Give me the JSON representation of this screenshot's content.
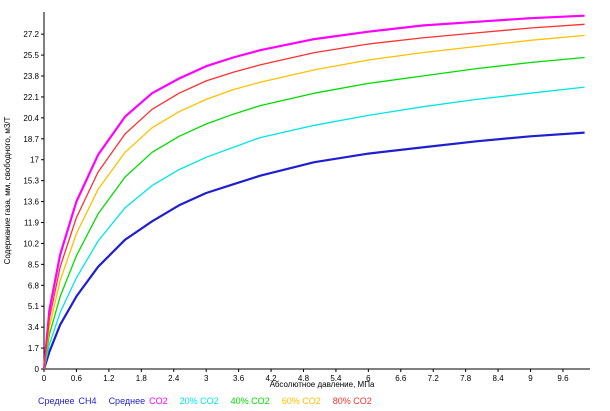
{
  "chart_data": {
    "type": "line",
    "xlabel": "Абсолютное давление, МПа",
    "ylabel": "Содержание газа, мм, свободного, м3/Т",
    "xlim": [
      0,
      10.1
    ],
    "ylim": [
      0,
      29.0
    ],
    "x_ticks": [
      "0",
      "0.6",
      "1.2",
      "1.8",
      "2.4",
      "3",
      "3.6",
      "4.2",
      "4.8",
      "5.4",
      "6",
      "6.6",
      "7.2",
      "7.8",
      "8.4",
      "9",
      "9.6"
    ],
    "y_ticks": [
      "0",
      "1.7",
      "3.4",
      "5.1",
      "6.8",
      "8.5",
      "10.2",
      "11.9",
      "13.6",
      "15.3",
      "17",
      "18.7",
      "20.4",
      "22.1",
      "23.8",
      "25.5",
      "27.2"
    ],
    "grid": false,
    "series": [
      {
        "name": "CH4",
        "color": "#1f1fd0",
        "x": [
          0,
          0.1,
          0.3,
          0.6,
          1.0,
          1.5,
          2.0,
          2.5,
          3.0,
          3.5,
          4.0,
          5.0,
          6.0,
          7.0,
          8.0,
          9.0,
          10.0
        ],
        "y": [
          0,
          1.4,
          3.6,
          5.9,
          8.3,
          10.5,
          12.0,
          13.3,
          14.3,
          15.0,
          15.7,
          16.8,
          17.5,
          18.0,
          18.5,
          18.9,
          19.2
        ]
      },
      {
        "name": "CO2",
        "color": "#ff00ff",
        "x": [
          0,
          0.1,
          0.3,
          0.6,
          1.0,
          1.5,
          2.0,
          2.5,
          3.0,
          3.5,
          4.0,
          5.0,
          6.0,
          7.0,
          8.0,
          9.0,
          10.0
        ],
        "y": [
          0,
          4.8,
          9.3,
          13.6,
          17.4,
          20.5,
          22.4,
          23.6,
          24.6,
          25.3,
          25.9,
          26.8,
          27.4,
          27.9,
          28.2,
          28.5,
          28.7
        ]
      },
      {
        "name": "20% CO2",
        "color": "#00e5e5",
        "x": [
          0,
          0.1,
          0.3,
          0.6,
          1.0,
          1.5,
          2.0,
          2.5,
          3.0,
          3.5,
          4.0,
          5.0,
          6.0,
          7.0,
          8.0,
          9.0,
          10.0
        ],
        "y": [
          0,
          2.0,
          4.6,
          7.4,
          10.4,
          13.1,
          14.9,
          16.2,
          17.2,
          18.0,
          18.8,
          19.8,
          20.6,
          21.3,
          21.9,
          22.4,
          22.9
        ]
      },
      {
        "name": "40% CO2",
        "color": "#00dd00",
        "x": [
          0,
          0.1,
          0.3,
          0.6,
          1.0,
          1.5,
          2.0,
          2.5,
          3.0,
          3.5,
          4.0,
          5.0,
          6.0,
          7.0,
          8.0,
          9.0,
          10.0
        ],
        "y": [
          0,
          2.8,
          5.9,
          9.2,
          12.6,
          15.6,
          17.6,
          18.9,
          19.9,
          20.7,
          21.4,
          22.4,
          23.2,
          23.8,
          24.4,
          24.9,
          25.3
        ]
      },
      {
        "name": "60% CO2",
        "color": "#ffc000",
        "x": [
          0,
          0.1,
          0.3,
          0.6,
          1.0,
          1.5,
          2.0,
          2.5,
          3.0,
          3.5,
          4.0,
          5.0,
          6.0,
          7.0,
          8.0,
          9.0,
          10.0
        ],
        "y": [
          0,
          3.4,
          7.2,
          11.0,
          14.6,
          17.6,
          19.6,
          20.9,
          21.9,
          22.7,
          23.3,
          24.3,
          25.1,
          25.7,
          26.2,
          26.7,
          27.1
        ]
      },
      {
        "name": "80% CO2",
        "color": "#ff3030",
        "x": [
          0,
          0.1,
          0.3,
          0.6,
          1.0,
          1.5,
          2.0,
          2.5,
          3.0,
          3.5,
          4.0,
          5.0,
          6.0,
          7.0,
          8.0,
          9.0,
          10.0
        ],
        "y": [
          0,
          4.1,
          8.3,
          12.3,
          16.0,
          19.1,
          21.1,
          22.4,
          23.4,
          24.1,
          24.7,
          25.7,
          26.4,
          26.9,
          27.3,
          27.7,
          28.0
        ]
      }
    ],
    "legend": [
      {
        "prefix": "Среднее",
        "label": "CH4",
        "color": "#1f1fd0"
      },
      {
        "prefix": "Среднее",
        "label": "CO2",
        "color": "#ff00ff"
      },
      {
        "prefix": "",
        "label": "20% CO2",
        "color": "#00e5e5"
      },
      {
        "prefix": "",
        "label": "40% CO2",
        "color": "#00dd00"
      },
      {
        "prefix": "",
        "label": "60% CO2",
        "color": "#ffc000"
      },
      {
        "prefix": "",
        "label": "80% CO2",
        "color": "#ff3030"
      }
    ],
    "legend_position": "bottom"
  }
}
